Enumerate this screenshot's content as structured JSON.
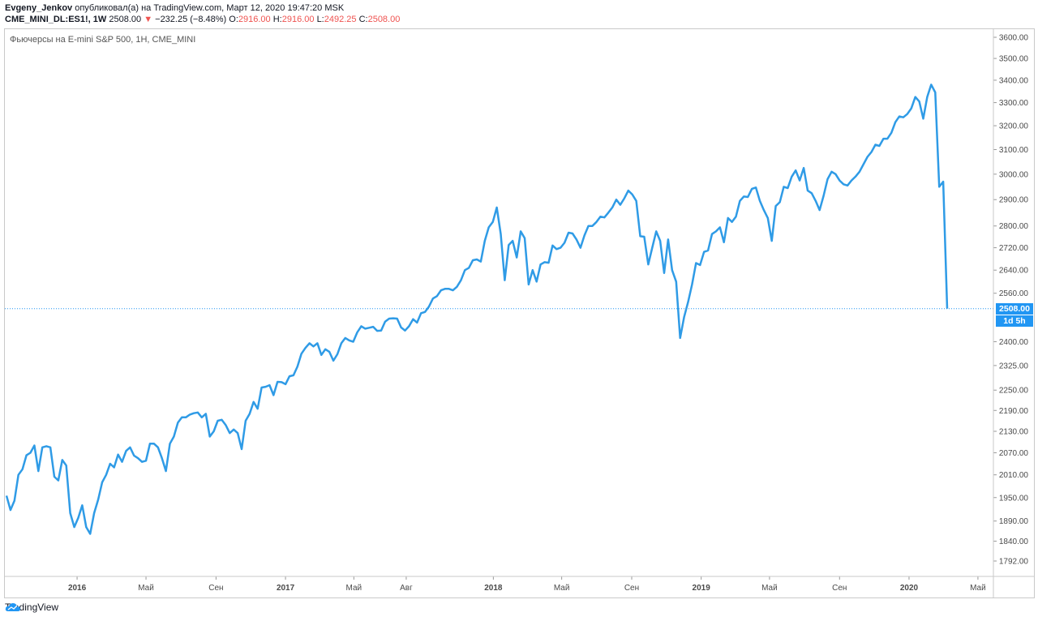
{
  "header": {
    "author": "Evgeny_Jenkov",
    "published_text": "опубликовал(а) на TradingView.com, Март 12, 2020 19:47:20 MSK",
    "symbol": "CME_MINI_DL:ES1!, 1W",
    "last_price": "2508.00",
    "change_arrow": "▼",
    "change": "−232.25 (−8.48%)",
    "o_label": "O:",
    "o_value": "2916.00",
    "h_label": "H:",
    "h_value": "2916.00",
    "l_label": "L:",
    "l_value": "2492.25",
    "c_label": "C:",
    "c_value": "2508.00"
  },
  "chart_title": "Фьючерсы на E-mini S&P 500, 1H, CME_MINI",
  "price_badge": "2508.00",
  "countdown_badge": "1d 5h",
  "footer": {
    "brand": "TradingView",
    "logo_icon": "tradingview-cloud-icon"
  },
  "colors": {
    "line": "#2f9be6",
    "accent": "#2196f3",
    "down": "#ef5350"
  },
  "chart_data": {
    "type": "line",
    "title": "Фьючерсы на E-mini S&P 500, 1H, CME_MINI",
    "scale": "log",
    "y_ticks": [
      "1792.00",
      "1840.00",
      "1890.00",
      "1950.00",
      "2010.00",
      "2070.00",
      "2130.00",
      "2190.00",
      "2250.00",
      "2325.00",
      "2400.00",
      "2560.00",
      "2640.00",
      "2720.00",
      "2800.00",
      "2900.00",
      "3000.00",
      "3100.00",
      "3200.00",
      "3300.00",
      "3400.00",
      "3500.00",
      "3600.00"
    ],
    "x_ticks": [
      {
        "label": "2016",
        "date": "2016-01-01",
        "bold": true
      },
      {
        "label": "Май",
        "date": "2016-05-01",
        "bold": false
      },
      {
        "label": "Сен",
        "date": "2016-09-01",
        "bold": false
      },
      {
        "label": "2017",
        "date": "2017-01-01",
        "bold": true
      },
      {
        "label": "Май",
        "date": "2017-05-01",
        "bold": false
      },
      {
        "label": "Авг",
        "date": "2017-08-01",
        "bold": false
      },
      {
        "label": "2018",
        "date": "2018-01-01",
        "bold": true
      },
      {
        "label": "Май",
        "date": "2018-05-01",
        "bold": false
      },
      {
        "label": "Сен",
        "date": "2018-09-01",
        "bold": false
      },
      {
        "label": "2019",
        "date": "2019-01-01",
        "bold": true
      },
      {
        "label": "Май",
        "date": "2019-05-01",
        "bold": false
      },
      {
        "label": "Сен",
        "date": "2019-09-01",
        "bold": false
      },
      {
        "label": "2020",
        "date": "2020-01-01",
        "bold": true
      },
      {
        "label": "Май",
        "date": "2020-05-01",
        "bold": false
      }
    ],
    "current_price": 2508,
    "series": [
      {
        "values": [
          [
            "2015-08-30",
            1955
          ],
          [
            "2015-09-06",
            1918
          ],
          [
            "2015-09-13",
            1942
          ],
          [
            "2015-09-20",
            2010
          ],
          [
            "2015-09-27",
            2025
          ],
          [
            "2015-10-04",
            2063
          ],
          [
            "2015-10-11",
            2070
          ],
          [
            "2015-10-18",
            2090
          ],
          [
            "2015-10-25",
            2020
          ],
          [
            "2015-11-01",
            2085
          ],
          [
            "2015-11-08",
            2088
          ],
          [
            "2015-11-15",
            2085
          ],
          [
            "2015-11-22",
            2005
          ],
          [
            "2015-11-29",
            1995
          ],
          [
            "2015-12-06",
            2050
          ],
          [
            "2015-12-13",
            2035
          ],
          [
            "2015-12-20",
            1910
          ],
          [
            "2015-12-27",
            1875
          ],
          [
            "2016-01-03",
            1898
          ],
          [
            "2016-01-10",
            1930
          ],
          [
            "2016-01-17",
            1875
          ],
          [
            "2016-01-24",
            1858
          ],
          [
            "2016-01-31",
            1910
          ],
          [
            "2016-02-07",
            1945
          ],
          [
            "2016-02-14",
            1990
          ],
          [
            "2016-02-21",
            2010
          ],
          [
            "2016-02-28",
            2040
          ],
          [
            "2016-03-06",
            2030
          ],
          [
            "2016-03-13",
            2065
          ],
          [
            "2016-03-20",
            2045
          ],
          [
            "2016-03-27",
            2075
          ],
          [
            "2016-04-03",
            2085
          ],
          [
            "2016-04-10",
            2062
          ],
          [
            "2016-04-17",
            2055
          ],
          [
            "2016-04-24",
            2045
          ],
          [
            "2016-05-01",
            2048
          ],
          [
            "2016-05-08",
            2095
          ],
          [
            "2016-05-15",
            2095
          ],
          [
            "2016-05-22",
            2085
          ],
          [
            "2016-05-29",
            2055
          ],
          [
            "2016-06-05",
            2020
          ],
          [
            "2016-06-12",
            2095
          ],
          [
            "2016-06-19",
            2115
          ],
          [
            "2016-06-26",
            2155
          ],
          [
            "2016-07-03",
            2170
          ],
          [
            "2016-07-10",
            2170
          ],
          [
            "2016-07-17",
            2178
          ],
          [
            "2016-07-24",
            2182
          ],
          [
            "2016-07-31",
            2184
          ],
          [
            "2016-08-07",
            2170
          ],
          [
            "2016-08-14",
            2180
          ],
          [
            "2016-08-21",
            2115
          ],
          [
            "2016-08-28",
            2130
          ],
          [
            "2016-09-04",
            2160
          ],
          [
            "2016-09-11",
            2163
          ],
          [
            "2016-09-18",
            2148
          ],
          [
            "2016-09-25",
            2125
          ],
          [
            "2016-10-02",
            2135
          ],
          [
            "2016-10-09",
            2125
          ],
          [
            "2016-10-16",
            2080
          ],
          [
            "2016-10-23",
            2160
          ],
          [
            "2016-10-30",
            2180
          ],
          [
            "2016-11-06",
            2215
          ],
          [
            "2016-11-13",
            2195
          ],
          [
            "2016-11-20",
            2258
          ],
          [
            "2016-11-27",
            2260
          ],
          [
            "2016-12-04",
            2265
          ],
          [
            "2016-12-11",
            2235
          ],
          [
            "2016-12-18",
            2275
          ],
          [
            "2016-12-25",
            2274
          ],
          [
            "2017-01-01",
            2268
          ],
          [
            "2017-01-08",
            2292
          ],
          [
            "2017-01-15",
            2295
          ],
          [
            "2017-01-22",
            2322
          ],
          [
            "2017-01-29",
            2362
          ],
          [
            "2017-02-05",
            2380
          ],
          [
            "2017-02-12",
            2395
          ],
          [
            "2017-02-19",
            2385
          ],
          [
            "2017-02-26",
            2395
          ],
          [
            "2017-03-05",
            2358
          ],
          [
            "2017-03-12",
            2376
          ],
          [
            "2017-03-19",
            2368
          ],
          [
            "2017-03-26",
            2340
          ],
          [
            "2017-04-02",
            2360
          ],
          [
            "2017-04-09",
            2395
          ],
          [
            "2017-04-16",
            2412
          ],
          [
            "2017-04-23",
            2404
          ],
          [
            "2017-04-30",
            2400
          ],
          [
            "2017-05-07",
            2430
          ],
          [
            "2017-05-14",
            2450
          ],
          [
            "2017-05-21",
            2442
          ],
          [
            "2017-05-28",
            2445
          ],
          [
            "2017-06-04",
            2448
          ],
          [
            "2017-06-11",
            2435
          ],
          [
            "2017-06-18",
            2436
          ],
          [
            "2017-06-25",
            2465
          ],
          [
            "2017-07-02",
            2475
          ],
          [
            "2017-07-09",
            2476
          ],
          [
            "2017-07-16",
            2475
          ],
          [
            "2017-07-23",
            2446
          ],
          [
            "2017-07-30",
            2436
          ],
          [
            "2017-08-06",
            2450
          ],
          [
            "2017-08-13",
            2473
          ],
          [
            "2017-08-20",
            2462
          ],
          [
            "2017-08-27",
            2493
          ],
          [
            "2017-09-03",
            2497
          ],
          [
            "2017-09-10",
            2515
          ],
          [
            "2017-09-17",
            2542
          ],
          [
            "2017-09-24",
            2550
          ],
          [
            "2017-10-01",
            2570
          ],
          [
            "2017-10-08",
            2575
          ],
          [
            "2017-10-15",
            2575
          ],
          [
            "2017-10-22",
            2570
          ],
          [
            "2017-10-29",
            2582
          ],
          [
            "2017-11-05",
            2604
          ],
          [
            "2017-11-12",
            2640
          ],
          [
            "2017-11-19",
            2648
          ],
          [
            "2017-11-26",
            2675
          ],
          [
            "2017-12-03",
            2678
          ],
          [
            "2017-12-10",
            2670
          ],
          [
            "2017-12-17",
            2745
          ],
          [
            "2017-12-24",
            2795
          ],
          [
            "2017-12-31",
            2815
          ],
          [
            "2018-01-07",
            2870
          ],
          [
            "2018-01-14",
            2770
          ],
          [
            "2018-01-21",
            2605
          ],
          [
            "2018-01-28",
            2730
          ],
          [
            "2018-02-04",
            2745
          ],
          [
            "2018-02-11",
            2685
          ],
          [
            "2018-02-18",
            2780
          ],
          [
            "2018-02-25",
            2755
          ],
          [
            "2018-03-04",
            2590
          ],
          [
            "2018-03-11",
            2640
          ],
          [
            "2018-03-18",
            2600
          ],
          [
            "2018-03-25",
            2660
          ],
          [
            "2018-04-01",
            2668
          ],
          [
            "2018-04-08",
            2666
          ],
          [
            "2018-04-15",
            2728
          ],
          [
            "2018-04-22",
            2715
          ],
          [
            "2018-04-29",
            2720
          ],
          [
            "2018-05-06",
            2738
          ],
          [
            "2018-05-13",
            2775
          ],
          [
            "2018-05-20",
            2772
          ],
          [
            "2018-05-27",
            2750
          ],
          [
            "2018-06-03",
            2720
          ],
          [
            "2018-06-10",
            2765
          ],
          [
            "2018-06-17",
            2800
          ],
          [
            "2018-06-24",
            2800
          ],
          [
            "2018-07-01",
            2815
          ],
          [
            "2018-07-08",
            2835
          ],
          [
            "2018-07-15",
            2832
          ],
          [
            "2018-07-22",
            2850
          ],
          [
            "2018-07-29",
            2870
          ],
          [
            "2018-08-05",
            2900
          ],
          [
            "2018-08-12",
            2880
          ],
          [
            "2018-08-19",
            2905
          ],
          [
            "2018-08-26",
            2935
          ],
          [
            "2018-09-02",
            2920
          ],
          [
            "2018-09-09",
            2895
          ],
          [
            "2018-09-16",
            2762
          ],
          [
            "2018-09-23",
            2760
          ],
          [
            "2018-09-30",
            2660
          ],
          [
            "2018-10-07",
            2720
          ],
          [
            "2018-10-14",
            2780
          ],
          [
            "2018-10-21",
            2745
          ],
          [
            "2018-10-28",
            2630
          ],
          [
            "2018-11-04",
            2750
          ],
          [
            "2018-11-11",
            2640
          ],
          [
            "2018-11-18",
            2600
          ],
          [
            "2018-11-25",
            2412
          ],
          [
            "2018-12-02",
            2480
          ],
          [
            "2018-12-09",
            2530
          ],
          [
            "2018-12-16",
            2590
          ],
          [
            "2018-12-23",
            2665
          ],
          [
            "2018-12-30",
            2658
          ],
          [
            "2019-01-06",
            2705
          ],
          [
            "2019-01-13",
            2710
          ],
          [
            "2019-01-20",
            2770
          ],
          [
            "2019-01-27",
            2780
          ],
          [
            "2019-02-03",
            2795
          ],
          [
            "2019-02-10",
            2740
          ],
          [
            "2019-02-17",
            2830
          ],
          [
            "2019-02-24",
            2815
          ],
          [
            "2019-03-03",
            2835
          ],
          [
            "2019-03-10",
            2895
          ],
          [
            "2019-03-17",
            2912
          ],
          [
            "2019-03-24",
            2910
          ],
          [
            "2019-03-31",
            2942
          ],
          [
            "2019-04-07",
            2947
          ],
          [
            "2019-04-14",
            2895
          ],
          [
            "2019-04-21",
            2860
          ],
          [
            "2019-04-28",
            2830
          ],
          [
            "2019-05-05",
            2745
          ],
          [
            "2019-05-12",
            2875
          ],
          [
            "2019-05-19",
            2890
          ],
          [
            "2019-05-26",
            2950
          ],
          [
            "2019-06-02",
            2945
          ],
          [
            "2019-06-09",
            2990
          ],
          [
            "2019-06-16",
            3015
          ],
          [
            "2019-06-23",
            2975
          ],
          [
            "2019-06-30",
            3025
          ],
          [
            "2019-07-07",
            2935
          ],
          [
            "2019-07-14",
            2925
          ],
          [
            "2019-07-21",
            2895
          ],
          [
            "2019-07-28",
            2860
          ],
          [
            "2019-08-04",
            2915
          ],
          [
            "2019-08-11",
            2980
          ],
          [
            "2019-08-18",
            3010
          ],
          [
            "2019-08-25",
            3000
          ],
          [
            "2019-09-01",
            2975
          ],
          [
            "2019-09-08",
            2960
          ],
          [
            "2019-09-15",
            2955
          ],
          [
            "2019-09-22",
            2975
          ],
          [
            "2019-09-29",
            2990
          ],
          [
            "2019-10-06",
            3010
          ],
          [
            "2019-10-13",
            3040
          ],
          [
            "2019-10-20",
            3070
          ],
          [
            "2019-10-27",
            3090
          ],
          [
            "2019-11-03",
            3120
          ],
          [
            "2019-11-10",
            3115
          ],
          [
            "2019-11-17",
            3145
          ],
          [
            "2019-11-24",
            3145
          ],
          [
            "2019-12-01",
            3170
          ],
          [
            "2019-12-08",
            3215
          ],
          [
            "2019-12-15",
            3240
          ],
          [
            "2019-12-22",
            3236
          ],
          [
            "2019-12-29",
            3250
          ],
          [
            "2020-01-05",
            3275
          ],
          [
            "2020-01-12",
            3325
          ],
          [
            "2020-01-19",
            3305
          ],
          [
            "2020-01-26",
            3230
          ],
          [
            "2020-02-02",
            3325
          ],
          [
            "2020-02-09",
            3380
          ],
          [
            "2020-02-16",
            3345
          ],
          [
            "2020-02-23",
            2950
          ],
          [
            "2020-03-01",
            2970
          ],
          [
            "2020-03-08",
            2508
          ]
        ]
      }
    ]
  }
}
